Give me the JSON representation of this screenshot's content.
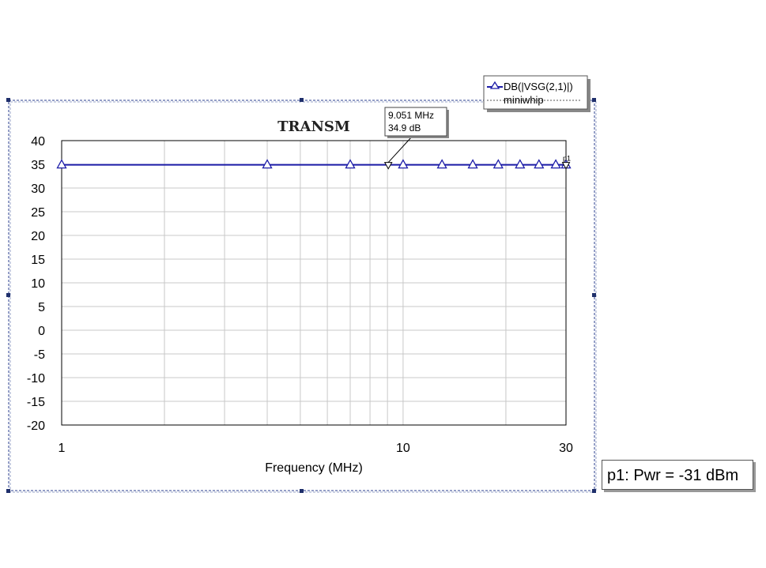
{
  "chart_data": {
    "type": "line",
    "title": "TRANSM",
    "xlabel": "Frequency (MHz)",
    "ylabel": "",
    "xscale": "log",
    "xlim": [
      1,
      30
    ],
    "ylim": [
      -20,
      40
    ],
    "xticks": [
      1,
      10,
      30
    ],
    "xtick_labels": [
      "1",
      "10",
      "30"
    ],
    "yticks": [
      -20,
      -15,
      -10,
      -5,
      0,
      5,
      10,
      15,
      20,
      25,
      30,
      35,
      40
    ],
    "grid": true,
    "legend_position": "top-right",
    "series": [
      {
        "name": "DB(|VSG(2,1)|)",
        "color": "#1c1ca8",
        "marker": "triangle-up",
        "x": [
          1,
          4,
          7,
          10,
          13,
          16,
          19,
          22,
          25,
          28,
          30
        ],
        "y": [
          34.9,
          34.9,
          34.9,
          34.9,
          34.9,
          34.9,
          34.9,
          34.9,
          34.9,
          34.9,
          34.9
        ]
      }
    ],
    "legend_entries": [
      {
        "label": "DB(|VSG(2,1)|)",
        "style": "solid-triangle"
      },
      {
        "label": "miniwhip",
        "style": "dotted"
      }
    ],
    "markers": [
      {
        "label": "9.051 MHz",
        "value_label": "34.9 dB",
        "x": 9.051,
        "y": 34.9
      },
      {
        "label": "p1",
        "x": 30,
        "y": 34.9
      }
    ]
  },
  "status": {
    "text": "p1: Pwr = -31 dBm"
  }
}
